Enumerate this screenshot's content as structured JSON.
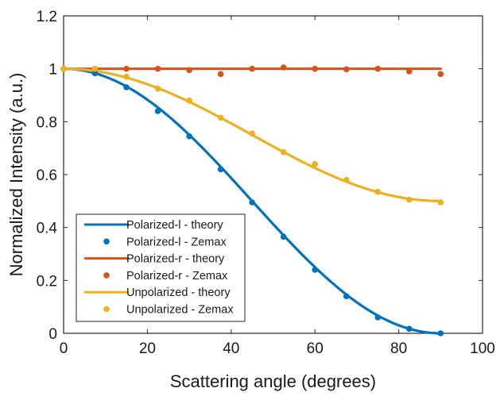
{
  "chart_data": {
    "type": "line",
    "title": "",
    "xlabel": "Scattering angle (degrees)",
    "ylabel": "Normalized Intensity (a.u.)",
    "xlim": [
      0,
      100
    ],
    "ylim": [
      0,
      1.2
    ],
    "xticks": [
      0,
      20,
      40,
      60,
      80,
      100
    ],
    "xtick_labels": [
      "0",
      "20",
      "40",
      "60",
      "80",
      "100"
    ],
    "yticks": [
      0,
      0.2,
      0.4,
      0.6,
      0.8,
      1,
      1.2
    ],
    "ytick_labels": [
      "0",
      "0.2",
      "0.4",
      "0.6",
      "0.8",
      "1",
      "1.2"
    ],
    "grid": false,
    "legend_position": "bottom-left",
    "series": [
      {
        "name": "Polarized-l - theory",
        "kind": "line",
        "color": "#0072BD",
        "formula": "cos^2(theta)",
        "x": [
          0,
          5,
          10,
          15,
          20,
          25,
          30,
          35,
          40,
          45,
          50,
          55,
          60,
          65,
          70,
          75,
          80,
          85,
          90
        ],
        "values": [
          1.0,
          0.992,
          0.97,
          0.933,
          0.883,
          0.821,
          0.75,
          0.671,
          0.587,
          0.5,
          0.413,
          0.329,
          0.25,
          0.179,
          0.117,
          0.067,
          0.03,
          0.008,
          0.0
        ]
      },
      {
        "name": "Polarized-l - Zemax",
        "kind": "scatter",
        "color": "#0072BD",
        "x": [
          0,
          7.5,
          15,
          22.5,
          30,
          37.5,
          45,
          52.5,
          60,
          67.5,
          75,
          82.5,
          90
        ],
        "values": [
          1.0,
          0.983,
          0.93,
          0.84,
          0.745,
          0.62,
          0.495,
          0.365,
          0.24,
          0.14,
          0.06,
          0.017,
          0.0
        ]
      },
      {
        "name": "Polarized-r - theory",
        "kind": "line",
        "color": "#D95319",
        "formula": "1",
        "x": [
          0,
          90
        ],
        "values": [
          1.0,
          1.0
        ]
      },
      {
        "name": "Polarized-r - Zemax",
        "kind": "scatter",
        "color": "#D95319",
        "x": [
          0,
          7.5,
          15,
          22.5,
          30,
          37.5,
          45,
          52.5,
          60,
          67.5,
          75,
          82.5,
          90
        ],
        "values": [
          1.0,
          1.0,
          1.0,
          1.0,
          0.995,
          0.98,
          1.0,
          1.005,
          1.0,
          0.998,
          1.0,
          0.99,
          0.98
        ]
      },
      {
        "name": "Unpolarized - theory",
        "kind": "line",
        "color": "#EDB120",
        "formula": "(1+cos^2(theta))/2",
        "x": [
          0,
          5,
          10,
          15,
          20,
          25,
          30,
          35,
          40,
          45,
          50,
          55,
          60,
          65,
          70,
          75,
          80,
          85,
          90
        ],
        "values": [
          1.0,
          0.996,
          0.985,
          0.967,
          0.942,
          0.91,
          0.875,
          0.836,
          0.793,
          0.75,
          0.707,
          0.664,
          0.625,
          0.589,
          0.558,
          0.533,
          0.515,
          0.504,
          0.5
        ]
      },
      {
        "name": "Unpolarized - Zemax",
        "kind": "scatter",
        "color": "#EDB120",
        "x": [
          0,
          7.5,
          15,
          22.5,
          30,
          37.5,
          45,
          52.5,
          60,
          67.5,
          75,
          82.5,
          90
        ],
        "values": [
          1.0,
          1.0,
          0.97,
          0.925,
          0.88,
          0.815,
          0.755,
          0.685,
          0.64,
          0.58,
          0.535,
          0.505,
          0.495
        ]
      }
    ]
  }
}
